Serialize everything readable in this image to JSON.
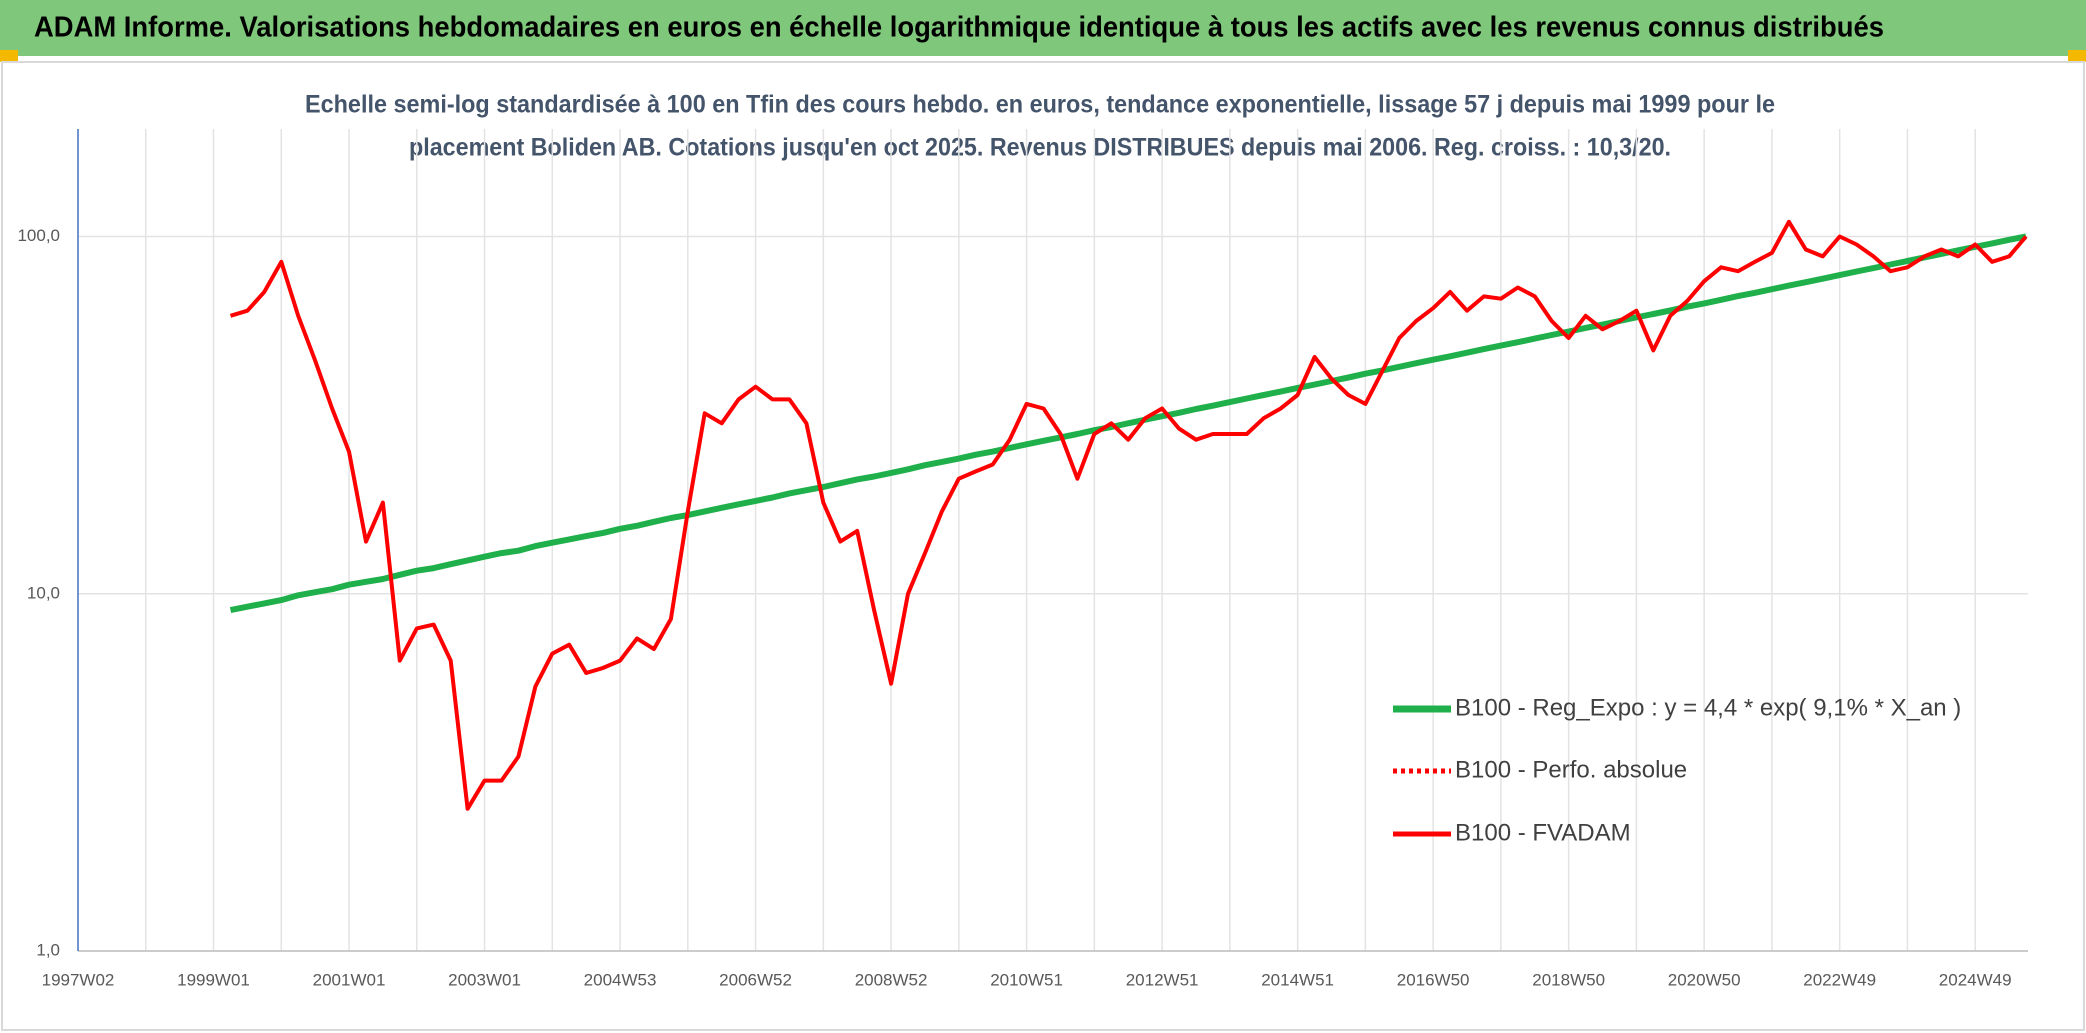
{
  "header": {
    "title": "ADAM Informe. Valorisations hebdomadaires en euros en échelle logarithmique identique à tous les actifs avec les revenus connus distribués"
  },
  "chart_data": {
    "type": "line",
    "subtitle": [
      "Echelle semi-log standardisée à 100 en Tfin des cours hebdo. en euros, tendance exponentielle, lissage 57 j depuis mai 1999 pour le",
      "placement Boliden AB. Cotations jusqu'en oct 2025. Revenus DISTRIBUES depuis mai 2006. Reg. croiss. : 10,3/20."
    ],
    "log_scale": true,
    "grid": true,
    "legend_position": "right",
    "ylim": [
      1,
      200
    ],
    "yticks": [
      {
        "value": 1,
        "label": "1,0"
      },
      {
        "value": 10,
        "label": "10,0"
      },
      {
        "value": 100,
        "label": "100,0"
      }
    ],
    "categories": [
      "1997W02",
      null,
      null,
      null,
      null,
      null,
      null,
      null,
      "1999W01",
      null,
      null,
      null,
      null,
      null,
      null,
      null,
      "2001W01",
      null,
      null,
      null,
      null,
      null,
      null,
      null,
      "2003W01",
      null,
      null,
      null,
      null,
      null,
      null,
      null,
      "2004W53",
      null,
      null,
      null,
      null,
      null,
      null,
      null,
      "2006W52",
      null,
      null,
      null,
      null,
      null,
      null,
      null,
      "2008W52",
      null,
      null,
      null,
      null,
      null,
      null,
      null,
      "2010W51",
      null,
      null,
      null,
      null,
      null,
      null,
      null,
      "2012W51",
      null,
      null,
      null,
      null,
      null,
      null,
      null,
      "2014W51",
      null,
      null,
      null,
      null,
      null,
      null,
      null,
      "2016W50",
      null,
      null,
      null,
      null,
      null,
      null,
      null,
      "2018W50",
      null,
      null,
      null,
      null,
      null,
      null,
      null,
      "2020W50",
      null,
      null,
      null,
      null,
      null,
      null,
      null,
      "2022W49",
      null,
      null,
      null,
      null,
      null,
      null,
      null,
      "2024W49",
      null,
      null,
      null
    ],
    "series": [
      {
        "name": "B100 - Reg_Expo : y = 4,4 * exp( 9,1% *  X_an )",
        "color": "#1fb04b",
        "width": 6,
        "dash": "solid",
        "values": [
          null,
          null,
          null,
          null,
          null,
          null,
          null,
          null,
          null,
          9.0,
          9.2,
          9.4,
          9.6,
          9.9,
          10.1,
          10.3,
          10.6,
          10.8,
          11.0,
          11.3,
          11.6,
          11.8,
          12.1,
          12.4,
          12.7,
          13.0,
          13.2,
          13.6,
          13.9,
          14.2,
          14.5,
          14.8,
          15.2,
          15.5,
          15.9,
          16.3,
          16.6,
          17.0,
          17.4,
          17.8,
          18.2,
          18.6,
          19.1,
          19.5,
          19.9,
          20.4,
          20.9,
          21.3,
          21.8,
          22.3,
          22.9,
          23.4,
          23.9,
          24.5,
          25.0,
          25.6,
          26.2,
          26.8,
          27.4,
          28.0,
          28.7,
          29.3,
          30.0,
          30.7,
          31.4,
          32.1,
          32.9,
          33.6,
          34.4,
          35.2,
          36.0,
          36.8,
          37.7,
          38.5,
          39.4,
          40.3,
          41.3,
          42.2,
          43.2,
          44.2,
          45.2,
          46.2,
          47.3,
          48.4,
          49.5,
          50.6,
          51.8,
          53.0,
          54.2,
          55.5,
          56.7,
          58.0,
          59.4,
          60.7,
          62.1,
          63.6,
          65.0,
          66.5,
          68.1,
          69.6,
          71.2,
          72.9,
          74.5,
          76.2,
          78.0,
          79.8,
          81.6,
          83.5,
          85.4,
          87.4,
          89.4,
          91.5,
          93.6,
          95.7,
          97.9,
          100
        ]
      },
      {
        "name": "B100 - Perfo. absolue",
        "color": "#ff0000",
        "width": 4,
        "dash": "dotted"
      },
      {
        "name": "B100 - FVADAM",
        "color": "#ff0000",
        "width": 4,
        "dash": "solid",
        "values": [
          null,
          null,
          null,
          null,
          null,
          null,
          null,
          null,
          null,
          60,
          62,
          70,
          85,
          60,
          45,
          33,
          25,
          14,
          18,
          6.5,
          8,
          8.2,
          6.5,
          2.5,
          3.0,
          3.0,
          3.5,
          5.5,
          6.8,
          7.2,
          6.0,
          6.2,
          6.5,
          7.5,
          7.0,
          8.5,
          17,
          32,
          30,
          35,
          38,
          35,
          35,
          30,
          18,
          14,
          15,
          9,
          5.6,
          10,
          13,
          17,
          21,
          22,
          23,
          27,
          34,
          33,
          28,
          21,
          28,
          30,
          27,
          31,
          33,
          29,
          27,
          28,
          28,
          28,
          31,
          33,
          36,
          46,
          40,
          36,
          34,
          42,
          52,
          58,
          63,
          70,
          62,
          68,
          67,
          72,
          68,
          58,
          52,
          60,
          55,
          58,
          62,
          48,
          60,
          66,
          75,
          82,
          80,
          85,
          90,
          110,
          92,
          88,
          100,
          95,
          88,
          80,
          82,
          88,
          92,
          88,
          95,
          85,
          88,
          100
        ]
      }
    ]
  }
}
